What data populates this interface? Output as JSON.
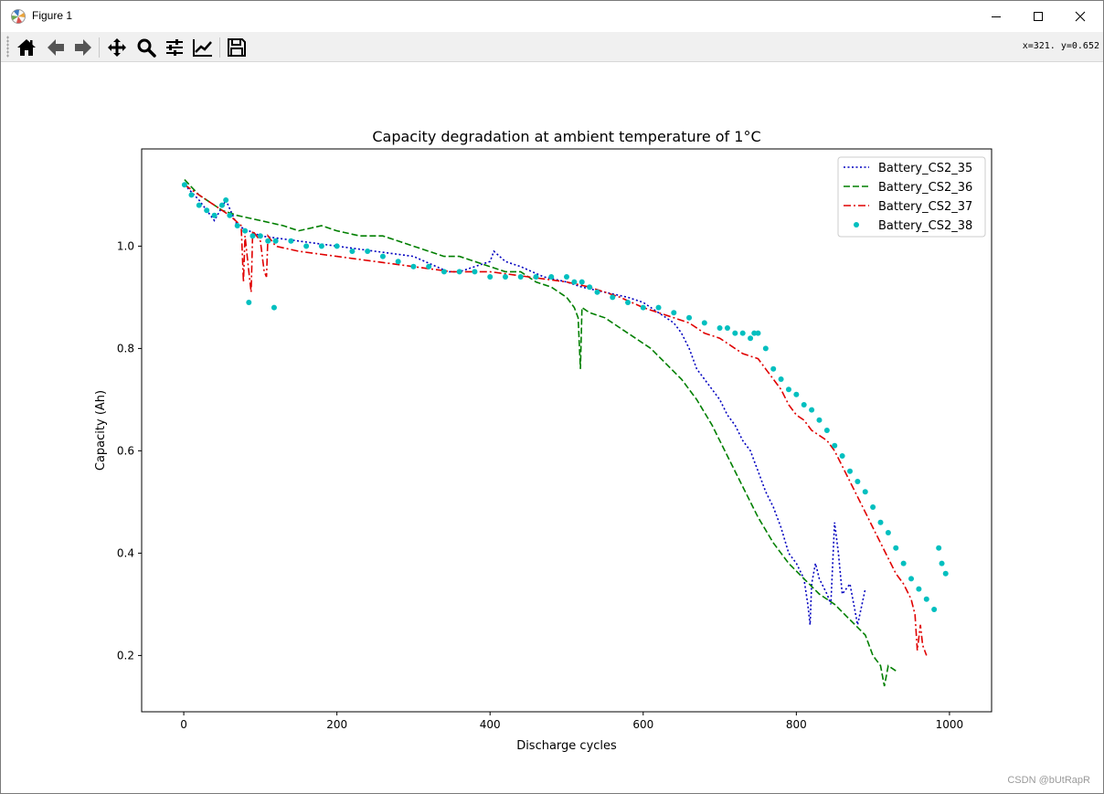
{
  "window": {
    "title": "Figure 1",
    "controls": {
      "minimize": "minimize",
      "maximize": "maximize",
      "close": "close"
    }
  },
  "toolbar": {
    "buttons": [
      "home-icon",
      "back-arrow-icon",
      "forward-arrow-icon",
      "pan-icon",
      "zoom-icon",
      "configure-subplots-icon",
      "edit-axis-icon",
      "save-icon"
    ],
    "coord_readout": "x=321. y=0.652"
  },
  "watermark": "CSDN @bUtRapR",
  "colors": {
    "s35": "#0000bf",
    "s36": "#007f00",
    "s37": "#e00000",
    "s38": "#00bfbf"
  },
  "chart_data": {
    "type": "line",
    "title": "Capacity degradation at ambient temperature of 1°C",
    "xlabel": "Discharge cycles",
    "ylabel": "Capacity (Ah)",
    "xlim": [
      -55,
      1055
    ],
    "ylim": [
      0.09,
      1.19
    ],
    "xticks": [
      0,
      200,
      400,
      600,
      800,
      1000
    ],
    "yticks": [
      0.2,
      0.4,
      0.6,
      0.8,
      1.0
    ],
    "xtick_labels": [
      "0",
      "200",
      "400",
      "600",
      "800",
      "1000"
    ],
    "ytick_labels": [
      "0.2",
      "0.4",
      "0.6",
      "0.8",
      "1.0"
    ],
    "legend_position": "upper right",
    "grid": false,
    "series": [
      {
        "name": "Battery_CS2_35",
        "style": "dotted",
        "x": [
          1,
          20,
          40,
          55,
          70,
          100,
          150,
          200,
          250,
          300,
          330,
          345,
          360,
          380,
          400,
          405,
          420,
          440,
          470,
          500,
          520,
          550,
          580,
          600,
          620,
          640,
          650,
          660,
          670,
          680,
          690,
          700,
          710,
          720,
          730,
          740,
          750,
          760,
          770,
          780,
          790,
          800,
          810,
          815,
          818,
          820,
          825,
          830,
          840,
          845,
          850,
          855,
          860,
          870,
          880,
          890
        ],
        "y": [
          1.12,
          1.09,
          1.05,
          1.09,
          1.04,
          1.02,
          1.01,
          1.0,
          0.99,
          0.98,
          0.96,
          0.95,
          0.95,
          0.96,
          0.97,
          0.99,
          0.97,
          0.96,
          0.94,
          0.93,
          0.92,
          0.91,
          0.9,
          0.89,
          0.87,
          0.85,
          0.83,
          0.8,
          0.76,
          0.74,
          0.72,
          0.7,
          0.67,
          0.65,
          0.62,
          0.6,
          0.56,
          0.52,
          0.49,
          0.45,
          0.4,
          0.38,
          0.35,
          0.3,
          0.26,
          0.34,
          0.38,
          0.35,
          0.32,
          0.3,
          0.46,
          0.4,
          0.32,
          0.34,
          0.26,
          0.33
        ]
      },
      {
        "name": "Battery_CS2_36",
        "style": "dashed",
        "x": [
          1,
          20,
          50,
          70,
          100,
          130,
          150,
          180,
          200,
          230,
          260,
          280,
          300,
          320,
          340,
          360,
          380,
          400,
          420,
          440,
          460,
          480,
          500,
          510,
          515,
          518,
          520,
          530,
          550,
          570,
          590,
          610,
          630,
          650,
          670,
          690,
          710,
          730,
          750,
          770,
          790,
          810,
          830,
          850,
          870,
          890,
          900,
          910,
          915,
          920,
          930
        ],
        "y": [
          1.13,
          1.1,
          1.07,
          1.06,
          1.05,
          1.04,
          1.03,
          1.04,
          1.03,
          1.02,
          1.02,
          1.01,
          1.0,
          0.99,
          0.98,
          0.98,
          0.97,
          0.96,
          0.95,
          0.95,
          0.93,
          0.92,
          0.9,
          0.88,
          0.86,
          0.76,
          0.88,
          0.87,
          0.86,
          0.84,
          0.82,
          0.8,
          0.77,
          0.74,
          0.7,
          0.65,
          0.59,
          0.53,
          0.47,
          0.42,
          0.38,
          0.35,
          0.32,
          0.3,
          0.27,
          0.24,
          0.2,
          0.18,
          0.14,
          0.18,
          0.17
        ]
      },
      {
        "name": "Battery_CS2_37",
        "style": "dashdot",
        "x": [
          1,
          20,
          40,
          60,
          75,
          78,
          80,
          85,
          88,
          90,
          95,
          100,
          105,
          108,
          110,
          115,
          120,
          150,
          200,
          250,
          300,
          350,
          400,
          450,
          500,
          530,
          550,
          570,
          600,
          620,
          640,
          660,
          680,
          700,
          720,
          730,
          750,
          760,
          770,
          780,
          790,
          800,
          810,
          820,
          830,
          840,
          850,
          860,
          870,
          880,
          890,
          900,
          910,
          920,
          930,
          940,
          950,
          955,
          958,
          962,
          965,
          970
        ],
        "y": [
          1.12,
          1.1,
          1.08,
          1.06,
          1.04,
          0.93,
          1.02,
          0.95,
          0.91,
          1.03,
          1.02,
          1.01,
          0.95,
          0.94,
          1.02,
          1.01,
          1.0,
          0.99,
          0.98,
          0.97,
          0.96,
          0.95,
          0.95,
          0.94,
          0.93,
          0.92,
          0.91,
          0.9,
          0.88,
          0.87,
          0.86,
          0.85,
          0.83,
          0.82,
          0.8,
          0.79,
          0.78,
          0.76,
          0.74,
          0.72,
          0.69,
          0.67,
          0.66,
          0.64,
          0.63,
          0.62,
          0.6,
          0.57,
          0.54,
          0.51,
          0.48,
          0.45,
          0.42,
          0.39,
          0.36,
          0.34,
          0.31,
          0.28,
          0.21,
          0.26,
          0.22,
          0.2
        ]
      },
      {
        "name": "Battery_CS2_38",
        "style": "points",
        "x": [
          1,
          10,
          20,
          30,
          40,
          50,
          55,
          60,
          70,
          80,
          85,
          90,
          100,
          110,
          118,
          120,
          140,
          160,
          180,
          200,
          220,
          240,
          260,
          280,
          300,
          320,
          340,
          360,
          380,
          400,
          420,
          440,
          460,
          480,
          500,
          510,
          520,
          530,
          540,
          560,
          580,
          600,
          620,
          640,
          660,
          680,
          700,
          710,
          720,
          730,
          740,
          745,
          750,
          760,
          770,
          780,
          790,
          800,
          810,
          820,
          830,
          840,
          850,
          860,
          870,
          880,
          890,
          900,
          910,
          920,
          930,
          940,
          950,
          960,
          970,
          980,
          986,
          990,
          995
        ],
        "y": [
          1.12,
          1.1,
          1.08,
          1.07,
          1.06,
          1.08,
          1.09,
          1.06,
          1.04,
          1.03,
          0.89,
          1.02,
          1.02,
          1.01,
          0.88,
          1.01,
          1.01,
          1.0,
          1.0,
          1.0,
          0.99,
          0.99,
          0.98,
          0.97,
          0.96,
          0.96,
          0.95,
          0.95,
          0.95,
          0.94,
          0.94,
          0.94,
          0.94,
          0.94,
          0.94,
          0.93,
          0.93,
          0.92,
          0.91,
          0.9,
          0.89,
          0.88,
          0.88,
          0.87,
          0.86,
          0.85,
          0.84,
          0.84,
          0.83,
          0.83,
          0.82,
          0.83,
          0.83,
          0.8,
          0.76,
          0.74,
          0.72,
          0.71,
          0.69,
          0.68,
          0.66,
          0.64,
          0.61,
          0.59,
          0.56,
          0.54,
          0.52,
          0.49,
          0.46,
          0.44,
          0.41,
          0.38,
          0.35,
          0.33,
          0.31,
          0.29,
          0.41,
          0.38,
          0.36
        ]
      }
    ]
  }
}
